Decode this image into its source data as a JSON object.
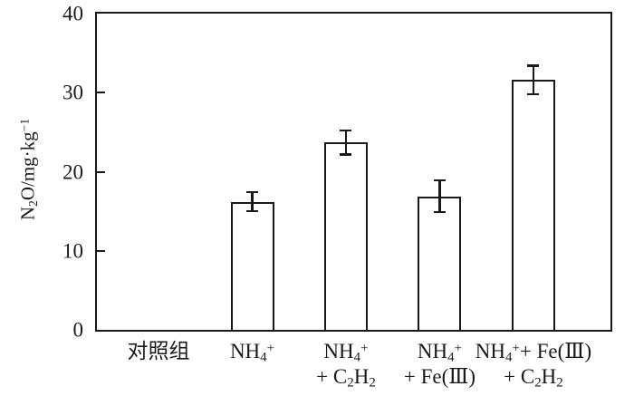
{
  "chart_data": {
    "type": "bar",
    "title": "",
    "xlabel": "",
    "ylabel": "N₂O/mg·kg⁻¹",
    "ylabel_segments": [
      {
        "t": "N"
      },
      {
        "sub": "2"
      },
      {
        "t": "O/mg·kg"
      },
      {
        "sup": "−1"
      }
    ],
    "categories": [
      "对照组",
      "NH₄⁺",
      "NH₄⁺ + C₂H₂",
      "NH₄⁺ + Fe(Ⅲ)",
      "NH₄⁺+ Fe(Ⅲ) + C₂H₂"
    ],
    "category_label_lines": [
      [
        [
          {
            "t": "对照组"
          }
        ]
      ],
      [
        [
          {
            "t": "NH"
          },
          {
            "sub": "4"
          },
          {
            "sup": "+"
          }
        ]
      ],
      [
        [
          {
            "t": "NH"
          },
          {
            "sub": "4"
          },
          {
            "sup": "+"
          }
        ],
        [
          {
            "t": "+ C"
          },
          {
            "sub": "2"
          },
          {
            "t": "H"
          },
          {
            "sub": "2"
          }
        ]
      ],
      [
        [
          {
            "t": "NH"
          },
          {
            "sub": "4"
          },
          {
            "sup": "+"
          }
        ],
        [
          {
            "t": "+ Fe(Ⅲ)"
          }
        ]
      ],
      [
        [
          {
            "t": "NH"
          },
          {
            "sub": "4"
          },
          {
            "sup": "+"
          },
          {
            "t": "+ Fe(Ⅲ)"
          }
        ],
        [
          {
            "t": "+ C"
          },
          {
            "sub": "2"
          },
          {
            "t": "H"
          },
          {
            "sub": "2"
          }
        ]
      ]
    ],
    "values": [
      0,
      16.2,
      23.7,
      16.9,
      31.6
    ],
    "errors": [
      0,
      1.2,
      1.5,
      2.0,
      1.8
    ],
    "ylim": [
      0,
      40
    ],
    "yticks": [
      0,
      10,
      20,
      30,
      40
    ],
    "grid": false,
    "frame": true,
    "legend_position": "none",
    "colors": {
      "axis": "#1a1a1a",
      "text": "#1a1a1a",
      "bar_fill": "#ffffff",
      "bar_border": "#1a1a1a",
      "background": "#ffffff"
    }
  }
}
